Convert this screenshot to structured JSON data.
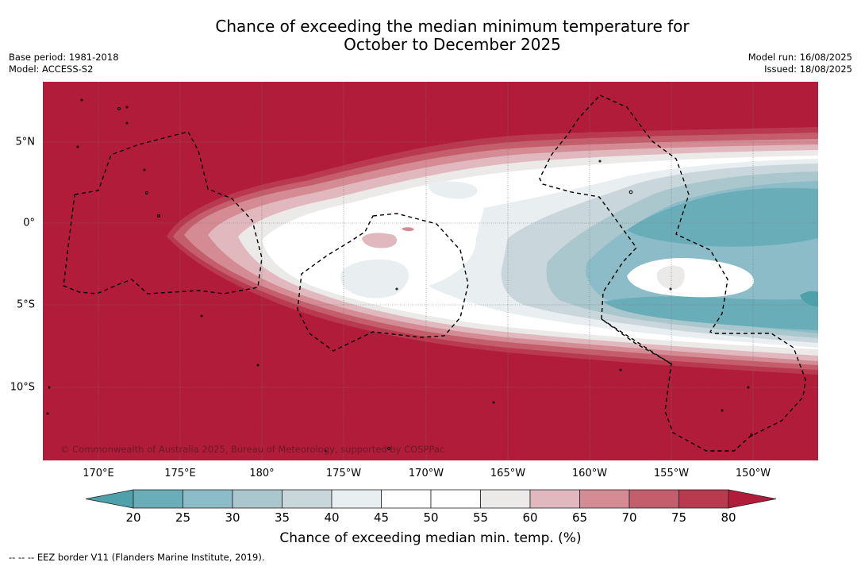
{
  "header": {
    "title_line1": "Chance of exceeding the median minimum temperature for",
    "title_line2": "October to December 2025",
    "base_period": "Base period: 1981-2018",
    "model": "Model: ACCESS-S2",
    "model_run": "Model run: 16/08/2025",
    "issued": "Issued: 18/08/2025"
  },
  "map": {
    "region": "Central Pacific",
    "lat_labels": [
      "5°N",
      "0°",
      "5°S",
      "10°S"
    ],
    "lon_labels": [
      "170°E",
      "175°E",
      "180°",
      "175°W",
      "170°W",
      "165°W",
      "160°W",
      "155°W",
      "150°W"
    ],
    "credit": "© Commonwealth of Australia 2025, Bureau of Meteorology, supported by COSPPac"
  },
  "colorbar": {
    "ticks": [
      "20",
      "25",
      "30",
      "35",
      "40",
      "45",
      "50",
      "55",
      "60",
      "65",
      "70",
      "75",
      "80"
    ],
    "colors": {
      "lt20": "#4ea0ab",
      "b20_25": "#69adb9",
      "b25_30": "#8cbcc7",
      "b30_35": "#aac7ce",
      "b35_40": "#c9d6db",
      "b40_45": "#e9eef0",
      "b45_50": "#ffffff",
      "b50_55": "#ffffff",
      "b55_60": "#ece9e9",
      "b60_65": "#e0b8bd",
      "b65_70": "#d48b94",
      "b70_75": "#c55e6c",
      "b75_80": "#b93a4e",
      "gt80": "#b21c3b"
    },
    "label": "Chance of exceeding median min. temp. (%)"
  },
  "footnote": "--  --  -- EEZ border V11 (Flanders Marine Institute, 2019)."
}
